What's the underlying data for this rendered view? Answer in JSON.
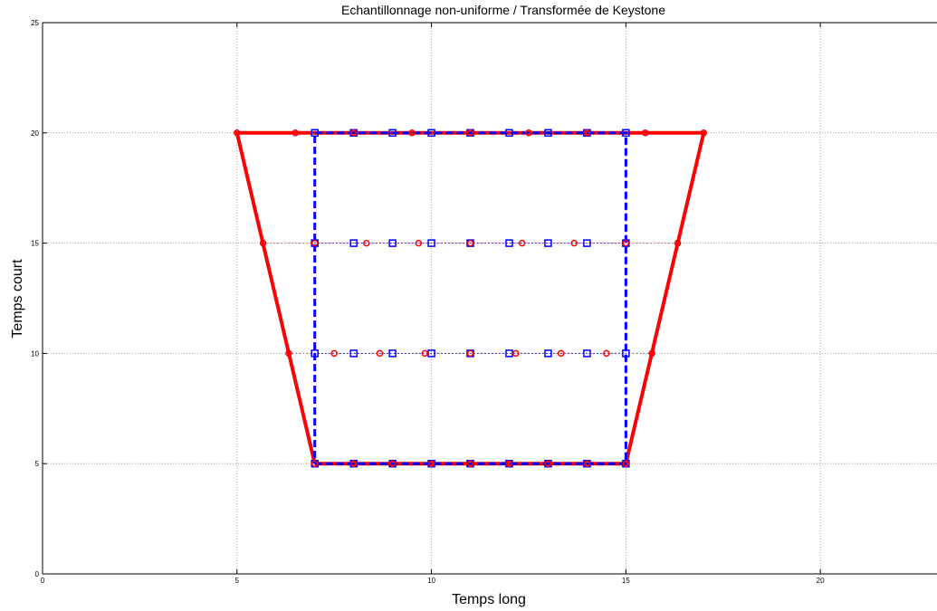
{
  "chart_data": {
    "type": "scatter",
    "title": "Echantillonnage non-uniforme / Transformée de Keystone",
    "xlabel": "Temps long",
    "ylabel": "Temps court",
    "xlim": [
      0,
      23
    ],
    "ylim": [
      0,
      25
    ],
    "xticks": [
      0,
      5,
      10,
      15,
      20
    ],
    "yticks": [
      0,
      5,
      10,
      15,
      20,
      25
    ],
    "xtick_labels": [
      "0",
      "5",
      "10",
      "15",
      "20"
    ],
    "ytick_labels": [
      "0",
      "5",
      "10",
      "15",
      "20",
      "25"
    ],
    "grid": true,
    "colors": {
      "red": "#ff0000",
      "blue": "#0000ff",
      "grid": "#8c8c8c"
    },
    "red_outline": [
      [
        7,
        5
      ],
      [
        15,
        5
      ],
      [
        17,
        20
      ],
      [
        5,
        20
      ],
      [
        7,
        5
      ]
    ],
    "blue_outline": [
      [
        7,
        5
      ],
      [
        15,
        5
      ],
      [
        15,
        20
      ],
      [
        7,
        20
      ],
      [
        7,
        5
      ]
    ],
    "red_rows": [
      {
        "y": 5,
        "x": [
          7,
          8,
          9,
          10,
          11,
          12,
          13,
          14,
          15
        ]
      },
      {
        "y": 10,
        "x": [
          6.33,
          7.5,
          8.67,
          9.83,
          11,
          12.17,
          13.33,
          14.5,
          15.67
        ]
      },
      {
        "y": 15,
        "x": [
          5.67,
          7,
          8.33,
          9.67,
          11,
          12.33,
          13.67,
          15,
          16.33
        ]
      },
      {
        "y": 20,
        "x": [
          5,
          6.5,
          8,
          9.5,
          11,
          12.5,
          14,
          15.5,
          17
        ]
      }
    ],
    "blue_rows": [
      {
        "y": 5,
        "x": [
          7,
          8,
          9,
          10,
          11,
          12,
          13,
          14,
          15
        ]
      },
      {
        "y": 10,
        "x": [
          7,
          8,
          9,
          10,
          11,
          12,
          13,
          14,
          15
        ]
      },
      {
        "y": 15,
        "x": [
          7,
          8,
          9,
          10,
          11,
          12,
          13,
          14,
          15
        ]
      },
      {
        "y": 20,
        "x": [
          7,
          8,
          9,
          10,
          11,
          12,
          13,
          14,
          15
        ]
      }
    ]
  }
}
